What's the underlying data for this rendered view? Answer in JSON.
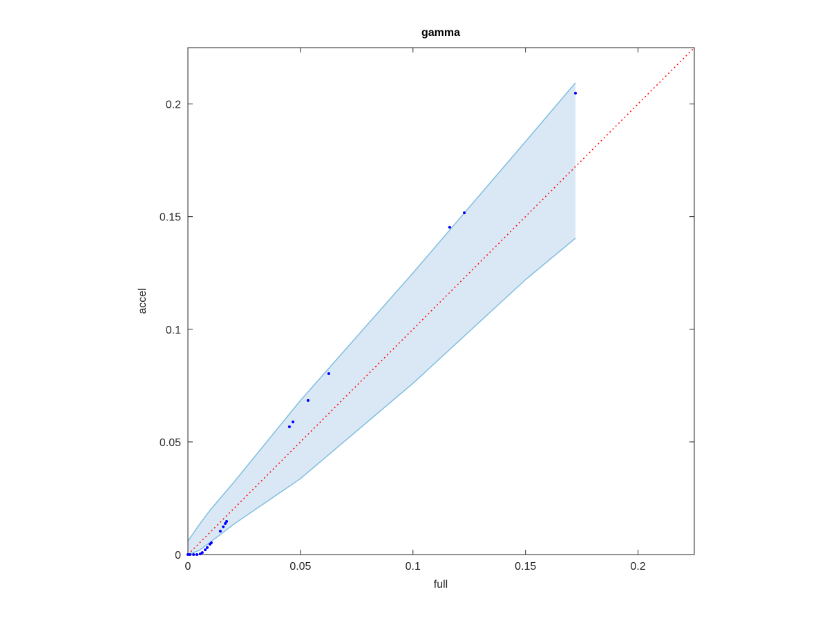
{
  "chart_data": {
    "type": "scatter",
    "title": "gamma",
    "x_label": "full",
    "y_label": "accel",
    "xlim": [
      0,
      0.225
    ],
    "ylim": [
      0,
      0.225
    ],
    "xticks": [
      0,
      0.05,
      0.1,
      0.15,
      0.2
    ],
    "yticks": [
      0,
      0.05,
      0.1,
      0.15,
      0.2
    ],
    "grid": false,
    "color": "#0000ff",
    "x": [
      0.1722,
      0.1228,
      0.1163,
      0.0626,
      0.0534,
      0.0467,
      0.0451,
      0.0172,
      0.0166,
      0.0157,
      0.0144,
      0.0104,
      0.0098,
      0.0086,
      0.0077,
      0.0064,
      0.0055,
      0.004,
      0.0025,
      0.0009,
      0
    ],
    "values": [
      0.2048,
      0.1517,
      0.1453,
      0.0803,
      0.0684,
      0.0589,
      0.0567,
      0.0147,
      0.0138,
      0.0123,
      0.0104,
      0.0052,
      0.0046,
      0.0031,
      0.0021,
      0.0009,
      0.0003,
      0,
      0,
      0,
      0
    ],
    "band": {
      "color": "#80bde0",
      "fill": "#d9e8f4",
      "x": [
        0,
        0.005,
        0.01,
        0.02,
        0.05,
        0.1,
        0.15,
        0.1722
      ],
      "upper": [
        0.006,
        0.0132,
        0.0199,
        0.0316,
        0.0684,
        0.125,
        0.1833,
        0.2094
      ],
      "lower": [
        0,
        0.0018,
        0.0055,
        0.0132,
        0.0337,
        0.076,
        0.122,
        0.1404
      ]
    },
    "reference_line_color": "#ff0000"
  }
}
